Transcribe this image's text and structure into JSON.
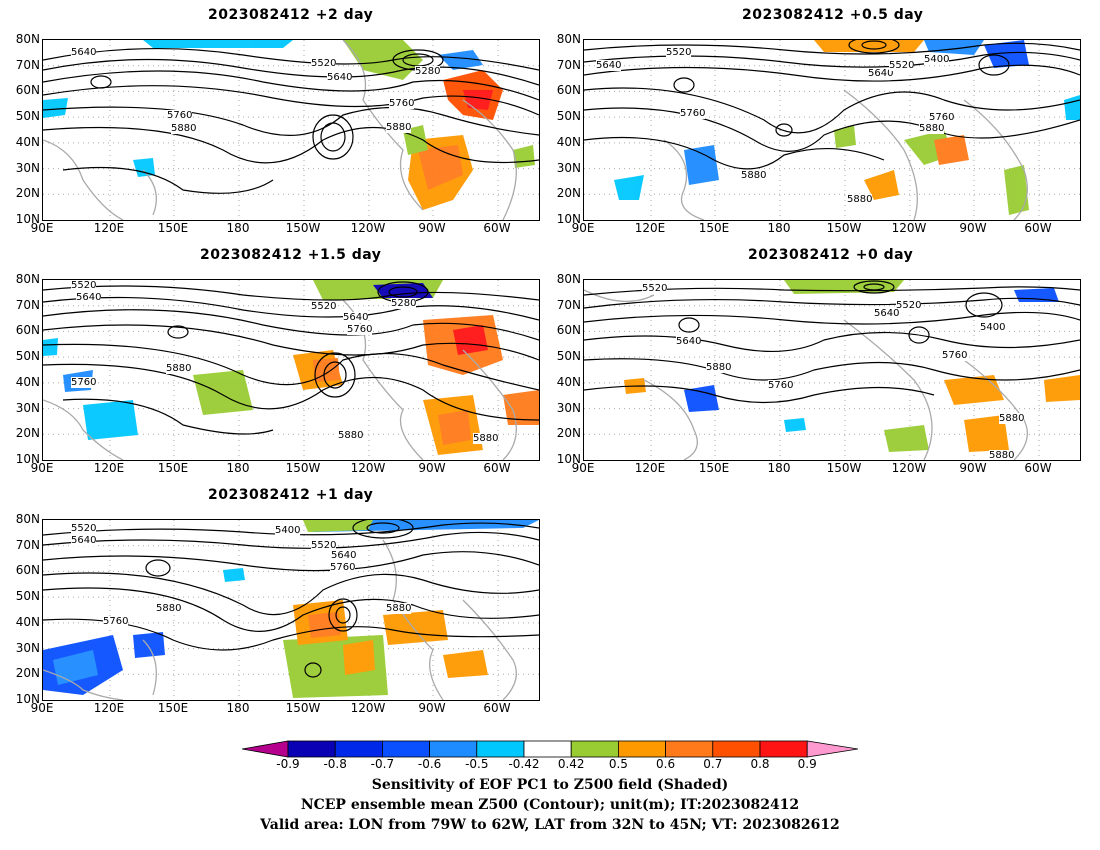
{
  "panels": [
    {
      "title": "2023082412 +2 day"
    },
    {
      "title": "2023082412 +0.5 day"
    },
    {
      "title": "2023082412 +1.5 day"
    },
    {
      "title": "2023082412 +0 day"
    },
    {
      "title": "2023082412 +1 day"
    }
  ],
  "lat_labels": [
    "80N",
    "70N",
    "60N",
    "50N",
    "40N",
    "30N",
    "20N",
    "10N"
  ],
  "lon_labels": [
    "90E",
    "120E",
    "150E",
    "180",
    "150W",
    "120W",
    "90W",
    "60W"
  ],
  "contour_labels": {
    "p0": [
      "5640",
      "5520",
      "5640",
      "5280",
      "5760",
      "5760",
      "5880",
      "5880"
    ],
    "p1": [
      "5520",
      "5640",
      "5640",
      "5520",
      "5400",
      "5760",
      "5880",
      "5880",
      "5760",
      "5880"
    ],
    "p2": [
      "5520",
      "5640",
      "5520",
      "5280",
      "5640",
      "5760",
      "5760",
      "5880",
      "5880",
      "5880"
    ],
    "p3": [
      "5520",
      "5520",
      "5640",
      "5400",
      "5640",
      "5880",
      "5760",
      "5760",
      "5880",
      "5880"
    ],
    "p4": [
      "5520",
      "5640",
      "5400",
      "5520",
      "5640",
      "5760",
      "5880",
      "5760",
      "5880"
    ]
  },
  "colorbar": {
    "ticks": [
      "-0.9",
      "-0.8",
      "-0.7",
      "-0.6",
      "-0.5",
      "-0.42",
      "0.42",
      "0.5",
      "0.6",
      "0.7",
      "0.8",
      "0.9"
    ],
    "colors": [
      "#0a00b4",
      "#0028e8",
      "#0a50ff",
      "#1e8cff",
      "#00c8ff",
      "#ffffff",
      "#99cc33",
      "#ff9900",
      "#ff7a1a",
      "#ff5000",
      "#ff1414"
    ],
    "low_extend": "#b4008c",
    "high_extend": "#ff9ad0"
  },
  "captions": {
    "line1": "Sensitivity of EOF PC1 to Z500 field (Shaded)",
    "line2": "NCEP ensemble mean Z500 (Contour); unit(m); IT:2023082412",
    "line3": "Valid area: LON from 79W to 62W, LAT from 32N to 45N; VT: 2023082612"
  }
}
